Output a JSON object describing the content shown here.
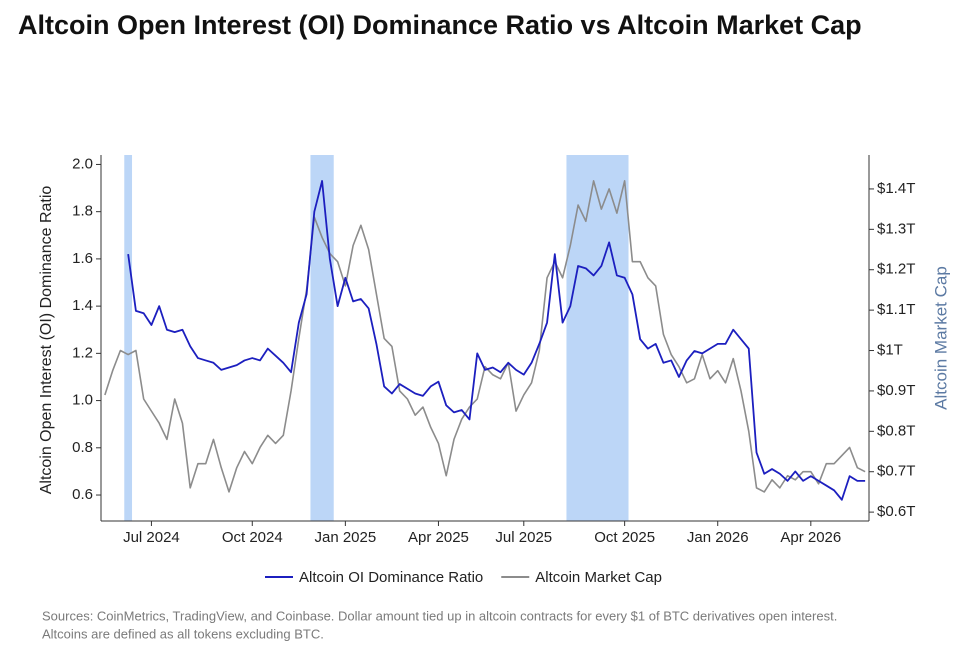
{
  "chart_data": {
    "type": "line",
    "title": "Altcoin Open Interest (OI) Dominance Ratio vs Altcoin Market Cap",
    "y_label": "Altcoin Open Interest (OI) Dominance Ratio",
    "y2_label": "Altcoin Market Cap",
    "source": "Sources: CoinMetrics, TradingView, and Coinbase. Dollar amount tied up in altcoin contracts for every $1 of BTC derivatives open interest.",
    "source_note": "Altcoins are defined as all tokens excluding BTC.",
    "categories": [
      null,
      null,
      null,
      null,
      null,
      null,
      "Jul 2024",
      null,
      null,
      null,
      null,
      null,
      null,
      null,
      null,
      null,
      null,
      null,
      null,
      "Oct 2024",
      null,
      null,
      null,
      null,
      null,
      null,
      null,
      null,
      null,
      null,
      null,
      "Jan 2025",
      null,
      null,
      null,
      null,
      null,
      null,
      null,
      null,
      null,
      null,
      null,
      "Apr 2025",
      null,
      null,
      null,
      null,
      null,
      null,
      null,
      null,
      null,
      null,
      "Jul 2025",
      null,
      null,
      null,
      null,
      null,
      null,
      null,
      null,
      null,
      null,
      null,
      null,
      "Oct 2025",
      null,
      null,
      null,
      null,
      null,
      null,
      null,
      null,
      null,
      null,
      null,
      "Jan 2026",
      null,
      null,
      null,
      null,
      null,
      null,
      null,
      null,
      null,
      null,
      null,
      "Apr 2026",
      null,
      null,
      null,
      null,
      null,
      null,
      null
    ],
    "series": [
      {
        "name": "Altcoin Market Cap",
        "color": "#8c8c8c",
        "axis": "y2",
        "values": [
          0.89,
          0.95,
          1.0,
          0.99,
          1.0,
          0.88,
          0.85,
          0.82,
          0.78,
          0.88,
          0.82,
          0.66,
          0.72,
          0.72,
          0.78,
          0.71,
          0.65,
          0.71,
          0.75,
          0.72,
          0.76,
          0.79,
          0.77,
          0.79,
          0.9,
          1.03,
          1.15,
          1.33,
          1.28,
          1.24,
          1.22,
          1.16,
          1.26,
          1.31,
          1.25,
          1.14,
          1.03,
          1.01,
          0.9,
          0.88,
          0.84,
          0.86,
          0.81,
          0.77,
          0.69,
          0.78,
          0.83,
          0.86,
          0.88,
          0.96,
          0.94,
          0.93,
          0.97,
          0.85,
          0.89,
          0.92,
          1.0,
          1.18,
          1.22,
          1.18,
          1.26,
          1.36,
          1.32,
          1.42,
          1.35,
          1.4,
          1.34,
          1.42,
          1.22,
          1.22,
          1.18,
          1.16,
          1.04,
          0.99,
          0.96,
          0.92,
          0.93,
          0.99,
          0.93,
          0.95,
          0.92,
          0.98,
          0.9,
          0.8,
          0.66,
          0.65,
          0.68,
          0.66,
          0.69,
          0.68,
          0.7,
          0.7,
          0.67,
          0.72,
          0.72,
          0.74,
          0.76,
          0.71,
          0.7
        ]
      },
      {
        "name": "Altcoin OI Dominance Ratio",
        "color": "#1c1fbf",
        "axis": "y",
        "values": [
          null,
          null,
          null,
          1.62,
          1.38,
          1.37,
          1.32,
          1.4,
          1.3,
          1.29,
          1.3,
          1.23,
          1.18,
          1.17,
          1.16,
          1.13,
          1.14,
          1.15,
          1.17,
          1.18,
          1.17,
          1.22,
          1.19,
          1.16,
          1.12,
          1.33,
          1.45,
          1.8,
          1.93,
          1.6,
          1.4,
          1.52,
          1.42,
          1.43,
          1.39,
          1.24,
          1.06,
          1.03,
          1.07,
          1.05,
          1.03,
          1.02,
          1.06,
          1.08,
          0.98,
          0.95,
          0.96,
          0.92,
          1.2,
          1.13,
          1.14,
          1.12,
          1.16,
          1.13,
          1.11,
          1.16,
          1.24,
          1.33,
          1.62,
          1.33,
          1.4,
          1.57,
          1.56,
          1.53,
          1.57,
          1.67,
          1.53,
          1.52,
          1.45,
          1.26,
          1.22,
          1.24,
          1.16,
          1.17,
          1.1,
          1.17,
          1.21,
          1.2,
          1.22,
          1.24,
          1.24,
          1.3,
          1.26,
          1.22,
          0.78,
          0.69,
          0.71,
          0.69,
          0.66,
          0.7,
          0.66,
          0.68,
          0.66,
          0.64,
          0.62,
          0.58,
          0.68,
          0.66,
          0.66
        ]
      }
    ],
    "legend_order": [
      1,
      0
    ],
    "highlight_ranges": [
      [
        3,
        3
      ],
      [
        27,
        29
      ],
      [
        60,
        67
      ]
    ],
    "highlight_color": "#bcd6f7",
    "ylim": [
      0.49,
      2.04
    ],
    "yticks": [
      0.6,
      0.8,
      {
        "value": 1,
        "label": "1.0"
      },
      1.2,
      1.4,
      1.6,
      1.8,
      {
        "value": 2,
        "label": "2.0"
      }
    ],
    "y2lim": [
      0.578,
      1.484
    ],
    "y2ticks": [
      {
        "value": 0.6,
        "label": "$0.6T"
      },
      {
        "value": 0.7,
        "label": "$0.7T"
      },
      {
        "value": 0.8,
        "label": "$0.8T"
      },
      {
        "value": 0.9,
        "label": "$0.9T"
      },
      {
        "value": 1,
        "label": "$1T"
      },
      {
        "value": 1.1,
        "label": "$1.1T"
      },
      {
        "value": 1.2,
        "label": "$1.2T"
      },
      {
        "value": 1.3,
        "label": "$1.3T"
      },
      {
        "value": 1.4,
        "label": "$1.4T"
      }
    ]
  }
}
